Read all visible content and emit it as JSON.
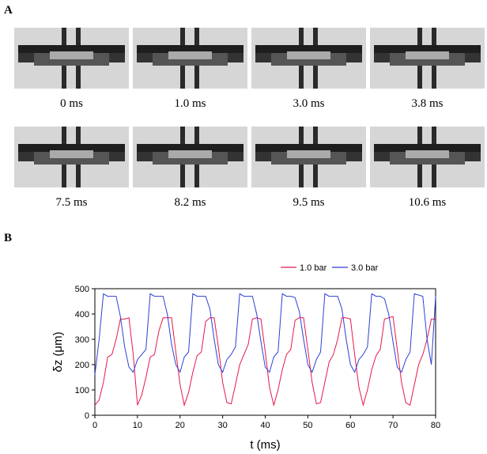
{
  "panels": {
    "a": {
      "label": "A",
      "captions": [
        "0 ms",
        "1.0 ms",
        "3.0 ms",
        "3.8 ms",
        "7.5 ms",
        "8.2 ms",
        "9.5 ms",
        "10.6 ms"
      ]
    },
    "b": {
      "label": "B"
    }
  },
  "chart_data": {
    "type": "line",
    "x_label": "t (ms)",
    "y_label": "δz (μm)",
    "x": [
      0,
      1,
      2,
      3,
      4,
      5,
      6,
      7,
      8,
      9,
      10,
      11,
      12,
      13,
      14,
      15,
      16,
      17,
      18,
      19,
      20,
      21,
      22,
      23,
      24,
      25,
      26,
      27,
      28,
      29,
      30,
      31,
      32,
      33,
      34,
      35,
      36,
      37,
      38,
      39,
      40,
      41,
      42,
      43,
      44,
      45,
      46,
      47,
      48,
      49,
      50,
      51,
      52,
      53,
      54,
      55,
      56,
      57,
      58,
      59,
      60,
      61,
      62,
      63,
      64,
      65,
      66,
      67,
      68,
      69,
      70,
      71,
      72,
      73,
      74,
      75,
      76,
      77,
      78,
      79,
      80
    ],
    "series": [
      {
        "name": "1.0 bar",
        "color": "#e8174a",
        "values": [
          40,
          60,
          130,
          230,
          240,
          300,
          380,
          380,
          385,
          240,
          40,
          80,
          150,
          230,
          240,
          330,
          385,
          385,
          385,
          250,
          120,
          40,
          90,
          170,
          235,
          250,
          370,
          385,
          385,
          270,
          130,
          50,
          45,
          120,
          200,
          240,
          280,
          380,
          385,
          380,
          250,
          110,
          40,
          100,
          180,
          240,
          260,
          375,
          385,
          385,
          260,
          130,
          45,
          50,
          130,
          210,
          240,
          300,
          385,
          385,
          380,
          240,
          110,
          40,
          100,
          180,
          235,
          260,
          380,
          385,
          390,
          260,
          130,
          50,
          40,
          120,
          200,
          240,
          300,
          380,
          380
        ]
      },
      {
        "name": "3.0 bar",
        "color": "#2f3fd6",
        "values": [
          160,
          300,
          480,
          470,
          470,
          470,
          390,
          270,
          190,
          170,
          220,
          240,
          260,
          480,
          470,
          470,
          470,
          400,
          280,
          200,
          170,
          230,
          250,
          480,
          470,
          470,
          470,
          420,
          300,
          200,
          170,
          220,
          240,
          270,
          480,
          470,
          470,
          470,
          400,
          290,
          190,
          170,
          230,
          250,
          480,
          470,
          470,
          465,
          410,
          300,
          200,
          170,
          220,
          250,
          480,
          470,
          470,
          470,
          420,
          300,
          200,
          170,
          220,
          240,
          270,
          480,
          470,
          470,
          460,
          400,
          290,
          190,
          170,
          220,
          250,
          480,
          475,
          470,
          300,
          200,
          470
        ]
      }
    ],
    "xlim": [
      0,
      80
    ],
    "xticks": [
      0,
      10,
      20,
      30,
      40,
      50,
      60,
      70,
      80
    ],
    "ylim": [
      0,
      500
    ],
    "yticks": [
      0,
      100,
      200,
      300,
      400,
      500
    ],
    "legend": "top-right"
  }
}
